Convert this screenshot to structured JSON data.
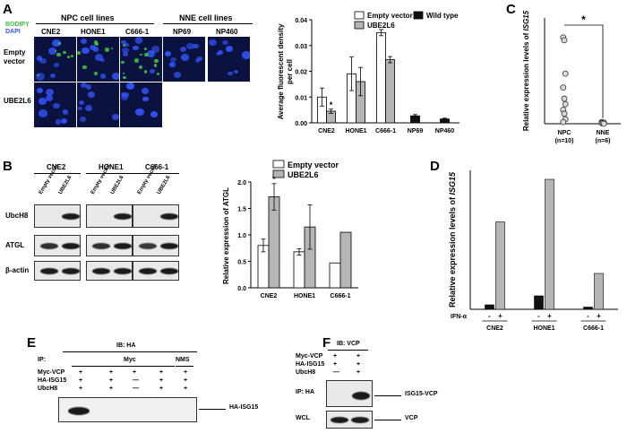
{
  "panels": {
    "A": {
      "letter": "A",
      "stain_bodipy": "BODIPY",
      "stain_dapi": "DAPI",
      "npc_header": "NPC  cell lines",
      "nne_header": "NNE  cell lines",
      "columns": [
        "CNE2",
        "HONE1",
        "C666-1",
        "NP69",
        "NP460"
      ],
      "rows": [
        "Empty vector",
        "UBE2L6"
      ],
      "row1_lines": [
        "Empty",
        "vector"
      ],
      "colors": {
        "bodipy": "#3fbf3f",
        "dapi": "#3355ff",
        "cell_bg": "#0b1240"
      }
    },
    "B": {
      "letter": "B",
      "cell_lines": [
        "CNE2",
        "HONE1",
        "C666-1"
      ],
      "lanes": [
        "Empty vector",
        "UBE2L6"
      ],
      "proteins": [
        "UbcH8",
        "ATGL",
        "β-actin"
      ]
    },
    "C": {
      "letter": "C"
    },
    "D": {
      "letter": "D"
    },
    "E": {
      "letter": "E",
      "ib": "IB: HA",
      "ip": "IP:",
      "ip_myc": "Myc",
      "ip_nms": "NMS",
      "rows": [
        {
          "name": "Myc-VCP",
          "signs": [
            "+",
            "+",
            "+",
            "+",
            "+"
          ]
        },
        {
          "name": "HA-ISG15",
          "signs": [
            "+",
            "+",
            "—",
            "+",
            "+"
          ]
        },
        {
          "name": "UbcH8",
          "signs": [
            "+",
            "+",
            "—",
            "+",
            "+"
          ]
        }
      ],
      "band_label": "HA-ISG15"
    },
    "F": {
      "letter": "F",
      "ib": "IB: VCP",
      "rows": [
        {
          "name": "Myc-VCP",
          "signs": [
            "+",
            "+"
          ]
        },
        {
          "name": "HA-ISG15",
          "signs": [
            "+",
            "+"
          ]
        },
        {
          "name": "UbcH8",
          "signs": [
            "—",
            "+"
          ]
        }
      ],
      "blots": [
        "IP: HA",
        "WCL"
      ],
      "band_labels": [
        "ISG15-VCP",
        "VCP"
      ]
    }
  },
  "chart_data": [
    {
      "id": "A-bar",
      "type": "bar",
      "ylabel_lines": [
        "Average fluorescent density",
        "per cell"
      ],
      "categories": [
        "CNE2",
        "HONE1",
        "C666-1",
        "NP69",
        "NP460"
      ],
      "series": [
        {
          "name": "Empty vector",
          "color": "#ffffff",
          "values": [
            0.01,
            0.019,
            0.035,
            null,
            null
          ],
          "errors": [
            0.0035,
            0.0065,
            0.0012,
            null,
            null
          ]
        },
        {
          "name": "UBE2L6",
          "color": "#b5b5b5",
          "values": [
            0.0045,
            0.016,
            0.0245,
            null,
            null
          ],
          "errors": [
            0.0008,
            0.0055,
            0.0012,
            null,
            null
          ]
        },
        {
          "name": "Wild type",
          "color": "#111111",
          "values": [
            null,
            null,
            null,
            0.0027,
            0.0015
          ],
          "errors": [
            null,
            null,
            null,
            0.0005,
            0.0003
          ]
        }
      ],
      "ylim": [
        0,
        0.04
      ],
      "yticks": [
        "0.00",
        "0.01",
        "0.02",
        "0.03",
        "0.04"
      ],
      "annotations": [
        "*"
      ]
    },
    {
      "id": "B-bar",
      "type": "bar",
      "ylabel": "Relative expression of ATGL",
      "categories": [
        "CNE2",
        "HONE1",
        "C666-1"
      ],
      "series": [
        {
          "name": "Empty vector",
          "color": "#ffffff",
          "values": [
            0.8,
            0.68,
            0.47
          ],
          "errors": [
            0.12,
            0.06,
            null
          ]
        },
        {
          "name": "UBE2L6",
          "color": "#b5b5b5",
          "values": [
            1.72,
            1.15,
            1.05
          ],
          "errors": [
            0.25,
            0.42,
            null
          ]
        }
      ],
      "ylim": [
        0,
        2.0
      ],
      "yticks": [
        "0.0",
        "0.5",
        "1.0",
        "1.5",
        "2.0"
      ],
      "annotations": [
        "*"
      ]
    },
    {
      "id": "C-scatter",
      "type": "scatter",
      "ylabel_prefix": "Relative expression levels of ",
      "ylabel_gene": "ISG15",
      "groups": [
        {
          "name": "NPC",
          "n": "(n=10)",
          "values": [
            1.55,
            1.5,
            0.9,
            0.65,
            0.45,
            0.35,
            0.25,
            0.18,
            0.08,
            0.03
          ]
        },
        {
          "name": "NNE",
          "n": "(n=6)",
          "values": [
            0.03,
            0.02,
            0.02,
            0.01,
            0.01,
            0.0
          ]
        }
      ],
      "annotations": [
        "*"
      ]
    },
    {
      "id": "D-bar",
      "type": "bar",
      "ylabel_prefix": "Relative expression levels of ",
      "ylabel_gene": "ISG15",
      "categories": [
        "CNE2",
        "HONE1",
        "C666-1"
      ],
      "treatment_label": "IFN-α",
      "treatment_signs": [
        "-",
        "+"
      ],
      "series": [
        {
          "name": "-",
          "color": "#111111",
          "values": [
            2.0,
            6.0,
            1.0
          ]
        },
        {
          "name": "+",
          "color": "#b5b5b5",
          "values": [
            39.0,
            58.0,
            16.0
          ]
        }
      ],
      "ylim": [
        0,
        62
      ]
    }
  ]
}
